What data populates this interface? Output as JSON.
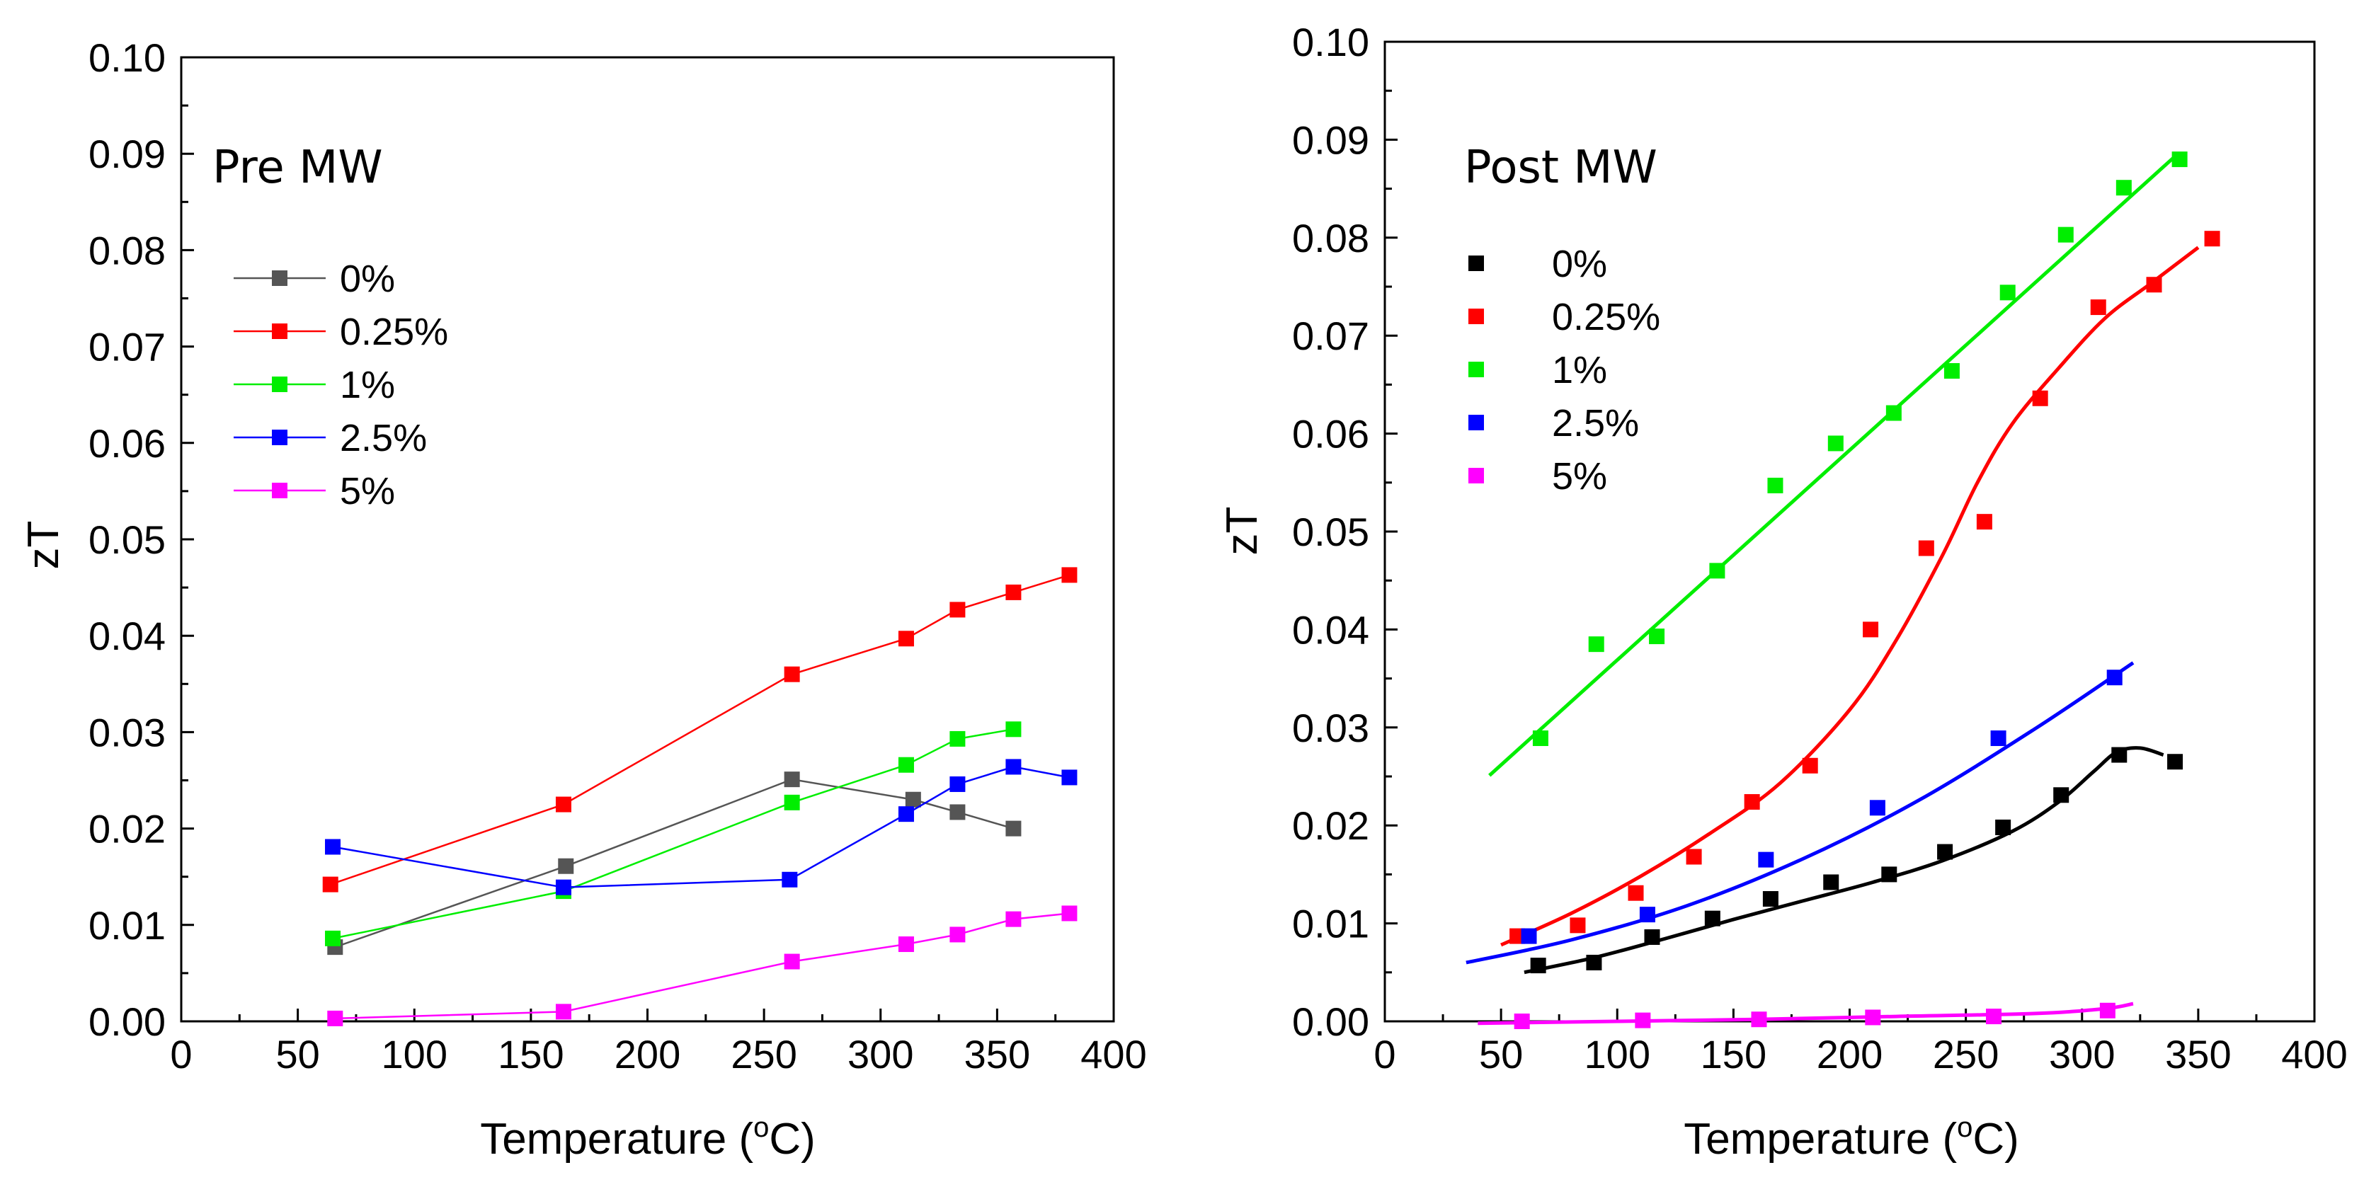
{
  "chart_data": [
    {
      "type": "line",
      "panel_title": "Pre MW",
      "xlabel_prefix": "Temperature (",
      "xlabel_sup": "o",
      "xlabel_suffix": "C)",
      "ylabel": "zT",
      "xlim": [
        0,
        400
      ],
      "ylim": [
        0,
        0.1
      ],
      "xticks": [
        "0",
        "50",
        "100",
        "150",
        "200",
        "250",
        "300",
        "350",
        "400"
      ],
      "yticks": [
        "0.00",
        "0.01",
        "0.02",
        "0.03",
        "0.04",
        "0.05",
        "0.06",
        "0.07",
        "0.08",
        "0.09",
        "0.10"
      ],
      "legend_position": "upper-left",
      "series": [
        {
          "name": "0%",
          "color": "#555555",
          "style": "line-markers",
          "x": [
            66,
            165,
            262,
            314,
            333,
            357
          ],
          "y": [
            0.0077,
            0.0161,
            0.0251,
            0.023,
            0.0217,
            0.02
          ]
        },
        {
          "name": "0.25%",
          "color": "#ff0000",
          "style": "line-markers",
          "x": [
            64,
            164,
            262,
            311,
            333,
            357,
            381
          ],
          "y": [
            0.0142,
            0.0225,
            0.036,
            0.0397,
            0.0427,
            0.0445,
            0.0463
          ]
        },
        {
          "name": "1%",
          "color": "#00ee00",
          "style": "line-markers",
          "x": [
            65,
            164,
            262,
            311,
            333,
            357
          ],
          "y": [
            0.0086,
            0.0135,
            0.0227,
            0.0266,
            0.0293,
            0.0303
          ]
        },
        {
          "name": "2.5%",
          "color": "#0000ff",
          "style": "line-markers",
          "x": [
            65,
            164,
            261,
            311,
            333,
            357,
            381
          ],
          "y": [
            0.0181,
            0.0139,
            0.0147,
            0.0215,
            0.0246,
            0.0264,
            0.0253
          ]
        },
        {
          "name": "5%",
          "color": "#ff00ff",
          "style": "line-markers",
          "x": [
            66,
            164,
            262,
            311,
            333,
            357,
            381
          ],
          "y": [
            0.0003,
            0.001,
            0.0062,
            0.008,
            0.009,
            0.0106,
            0.0112
          ]
        }
      ]
    },
    {
      "type": "scatter",
      "panel_title": "Post MW",
      "xlabel_prefix": "Temperature (",
      "xlabel_sup": "o",
      "xlabel_suffix": "C)",
      "ylabel": "zT",
      "xlim": [
        0,
        400
      ],
      "ylim": [
        0,
        0.1
      ],
      "xticks": [
        "0",
        "50",
        "100",
        "150",
        "200",
        "250",
        "300",
        "350",
        "400"
      ],
      "yticks": [
        "0.00",
        "0.01",
        "0.02",
        "0.03",
        "0.04",
        "0.05",
        "0.06",
        "0.07",
        "0.08",
        "0.09",
        "0.10"
      ],
      "legend_position": "upper-left",
      "series": [
        {
          "name": "0%",
          "color": "#000000",
          "style": "markers-fit",
          "x": [
            66,
            90,
            115,
            141,
            166,
            192,
            217,
            241,
            266,
            291,
            316,
            340
          ],
          "y": [
            0.0057,
            0.006,
            0.0086,
            0.0105,
            0.0125,
            0.0142,
            0.015,
            0.0173,
            0.0198,
            0.0231,
            0.0272,
            0.0265
          ],
          "fit_x": [
            60,
            90,
            120,
            150,
            180,
            210,
            240,
            270,
            290,
            305,
            315,
            325,
            335
          ],
          "fit_y": [
            0.005,
            0.0065,
            0.0084,
            0.0104,
            0.0123,
            0.0142,
            0.0164,
            0.0194,
            0.0224,
            0.0255,
            0.0275,
            0.0279,
            0.0272
          ]
        },
        {
          "name": "0.25%",
          "color": "#ff0000",
          "style": "markers-fit",
          "x": [
            57,
            83,
            108,
            133,
            158,
            183,
            209,
            233,
            258,
            282,
            307,
            331,
            356
          ],
          "y": [
            0.0087,
            0.0098,
            0.0131,
            0.0168,
            0.0224,
            0.0261,
            0.04,
            0.0483,
            0.051,
            0.0636,
            0.0729,
            0.0752,
            0.0799
          ],
          "fit_x": [
            50,
            80,
            110,
            140,
            170,
            200,
            220,
            240,
            255,
            270,
            290,
            310,
            330,
            350
          ],
          "fit_y": [
            0.0078,
            0.011,
            0.0148,
            0.0192,
            0.0243,
            0.0318,
            0.0389,
            0.0476,
            0.055,
            0.061,
            0.0667,
            0.0718,
            0.0754,
            0.079
          ]
        },
        {
          "name": "1%",
          "color": "#00ee00",
          "style": "markers-fit",
          "x": [
            67,
            91,
            117,
            143,
            168,
            194,
            219,
            244,
            268,
            293,
            318,
            342
          ],
          "y": [
            0.0289,
            0.0385,
            0.0393,
            0.046,
            0.0547,
            0.059,
            0.0621,
            0.0664,
            0.0744,
            0.0803,
            0.0851,
            0.088
          ],
          "fit_x": [
            45,
            340
          ],
          "fit_y": [
            0.0251,
            0.0883
          ]
        },
        {
          "name": "2.5%",
          "color": "#0000ff",
          "style": "markers-fit",
          "x": [
            62,
            113,
            164,
            212,
            264,
            314
          ],
          "y": [
            0.0087,
            0.0109,
            0.0165,
            0.0218,
            0.0289,
            0.0351
          ],
          "fit_x": [
            35,
            80,
            130,
            180,
            230,
            280,
            322
          ],
          "fit_y": [
            0.006,
            0.0083,
            0.0118,
            0.0166,
            0.0226,
            0.0299,
            0.0366
          ]
        },
        {
          "name": "5%",
          "color": "#ff00ff",
          "style": "markers-fit",
          "x": [
            59,
            111,
            161,
            210,
            262,
            311
          ],
          "y": [
            0.0,
            0.0001,
            0.0002,
            0.0004,
            0.0005,
            0.0011
          ],
          "fit_x": [
            40,
            100,
            160,
            220,
            280,
            310,
            322
          ],
          "fit_y": [
            -0.0002,
            0.0,
            0.0002,
            0.0005,
            0.0008,
            0.0013,
            0.0018
          ]
        }
      ]
    }
  ]
}
